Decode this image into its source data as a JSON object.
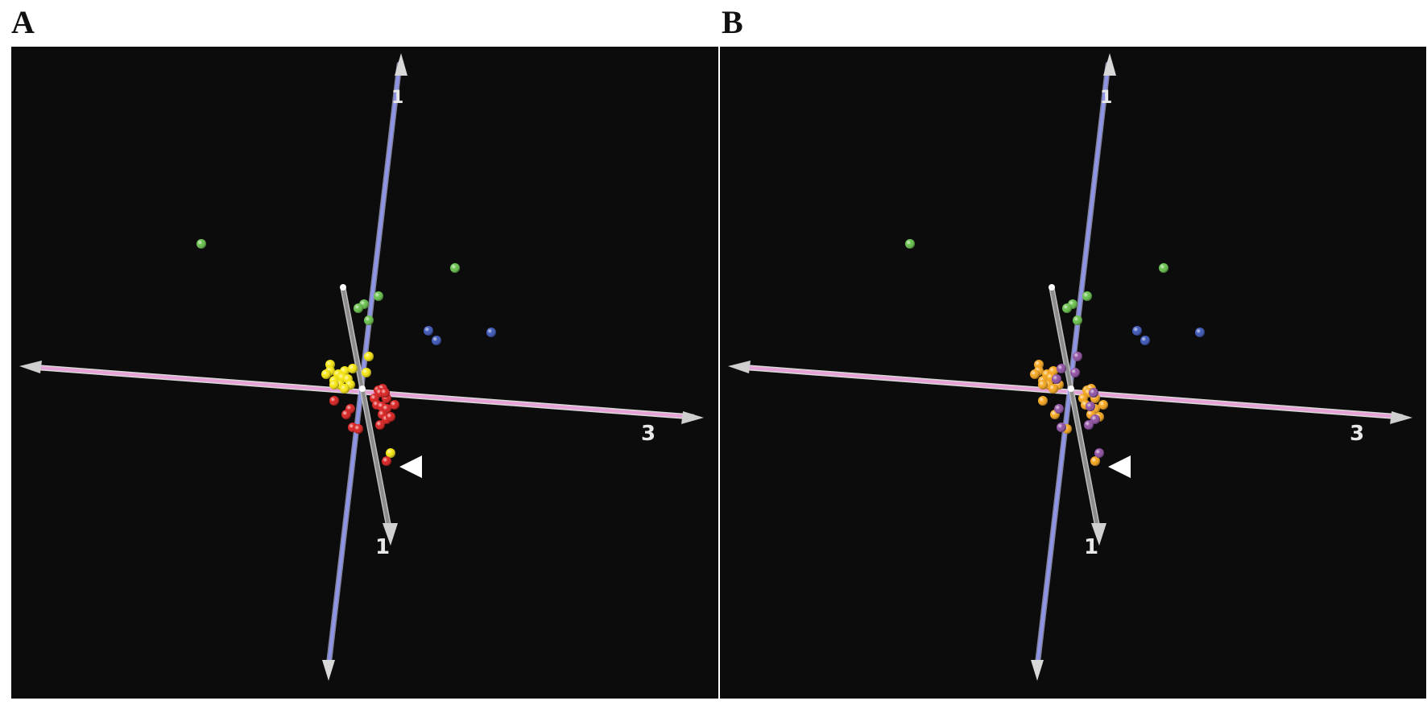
{
  "panels": [
    {
      "label": "A",
      "axes": [
        {
          "id": "pink",
          "label": "3",
          "color": "#e7a3d8"
        },
        {
          "id": "blue",
          "label": "1",
          "color": "#8f95e6"
        },
        {
          "id": "gray",
          "label": "1",
          "color": "#9a9a9a"
        }
      ]
    },
    {
      "label": "B",
      "axes": [
        {
          "id": "pink",
          "label": "3",
          "color": "#e7a3d8"
        },
        {
          "id": "blue",
          "label": "1",
          "color": "#8f95e6"
        },
        {
          "id": "gray",
          "label": "1",
          "color": "#9a9a9a"
        }
      ]
    }
  ],
  "chart_data": [
    {
      "type": "scatter",
      "projection": "3d",
      "title": "",
      "marker_icon": "white-triangle-pointer-icon",
      "series": [
        {
          "color": "#66c04a",
          "points": [
            [
              -2.0,
              1.8
            ],
            [
              1.15,
              1.5
            ],
            [
              0.2,
              1.15
            ],
            [
              0.02,
              1.05
            ],
            [
              -0.05,
              1.0
            ],
            [
              0.08,
              0.85
            ]
          ]
        },
        {
          "color": "#3a55b8",
          "points": [
            [
              0.82,
              0.72
            ],
            [
              0.92,
              0.6
            ],
            [
              1.6,
              0.7
            ]
          ]
        },
        {
          "color": "#f5e50d",
          "points": [
            [
              -0.4,
              0.3
            ],
            [
              -0.4,
              0.22
            ],
            [
              -0.3,
              0.18
            ],
            [
              -0.22,
              0.22
            ],
            [
              -0.45,
              0.18
            ],
            [
              -0.35,
              0.1
            ],
            [
              -0.25,
              0.14
            ],
            [
              -0.18,
              0.12
            ],
            [
              -0.28,
              0.05
            ],
            [
              -0.35,
              0.05
            ],
            [
              -0.15,
              0.05
            ],
            [
              -0.22,
              0.0
            ],
            [
              -0.12,
              0.25
            ],
            [
              0.05,
              0.2
            ],
            [
              0.08,
              0.4
            ],
            [
              0.35,
              -0.8
            ]
          ]
        },
        {
          "color": "#d81e1e",
          "points": [
            [
              0.2,
              -0.02
            ],
            [
              0.25,
              0.0
            ],
            [
              0.22,
              -0.05
            ],
            [
              0.15,
              -0.12
            ],
            [
              0.18,
              -0.2
            ],
            [
              0.24,
              -0.22
            ],
            [
              0.3,
              -0.25
            ],
            [
              0.25,
              -0.32
            ],
            [
              0.3,
              -0.38
            ],
            [
              0.22,
              -0.45
            ],
            [
              0.35,
              -0.35
            ],
            [
              0.4,
              -0.2
            ],
            [
              0.3,
              -0.12
            ],
            [
              0.28,
              -0.05
            ],
            [
              -0.35,
              -0.15
            ],
            [
              -0.15,
              -0.25
            ],
            [
              -0.2,
              -0.32
            ],
            [
              -0.12,
              -0.48
            ],
            [
              -0.05,
              -0.5
            ],
            [
              0.3,
              -0.9
            ]
          ]
        }
      ]
    },
    {
      "type": "scatter",
      "projection": "3d",
      "title": "",
      "marker_icon": "white-triangle-pointer-icon",
      "series": [
        {
          "color": "#66c04a",
          "points": [
            [
              -2.0,
              1.8
            ],
            [
              1.15,
              1.5
            ],
            [
              0.2,
              1.15
            ],
            [
              0.02,
              1.05
            ],
            [
              -0.05,
              1.0
            ],
            [
              0.08,
              0.85
            ]
          ]
        },
        {
          "color": "#3a55b8",
          "points": [
            [
              0.82,
              0.72
            ],
            [
              0.92,
              0.6
            ],
            [
              1.6,
              0.7
            ]
          ]
        },
        {
          "color": "#f5a51c",
          "points": [
            [
              -0.4,
              0.3
            ],
            [
              -0.4,
              0.22
            ],
            [
              -0.3,
              0.18
            ],
            [
              -0.22,
              0.22
            ],
            [
              -0.45,
              0.18
            ],
            [
              -0.35,
              0.1
            ],
            [
              -0.25,
              0.14
            ],
            [
              -0.28,
              0.05
            ],
            [
              -0.35,
              0.05
            ],
            [
              -0.15,
              0.05
            ],
            [
              -0.22,
              0.0
            ],
            [
              0.2,
              -0.02
            ],
            [
              0.25,
              0.0
            ],
            [
              0.22,
              -0.05
            ],
            [
              0.15,
              -0.12
            ],
            [
              0.18,
              -0.2
            ],
            [
              0.3,
              -0.25
            ],
            [
              0.25,
              -0.32
            ],
            [
              0.35,
              -0.35
            ],
            [
              0.4,
              -0.2
            ],
            [
              0.3,
              -0.12
            ],
            [
              -0.35,
              -0.15
            ],
            [
              -0.2,
              -0.32
            ],
            [
              -0.05,
              -0.5
            ],
            [
              0.3,
              -0.9
            ]
          ]
        },
        {
          "color": "#8e4fa2",
          "points": [
            [
              -0.12,
              0.25
            ],
            [
              0.05,
              0.2
            ],
            [
              0.08,
              0.4
            ],
            [
              -0.18,
              0.12
            ],
            [
              0.24,
              -0.22
            ],
            [
              0.3,
              -0.38
            ],
            [
              0.22,
              -0.45
            ],
            [
              0.28,
              -0.05
            ],
            [
              -0.15,
              -0.25
            ],
            [
              -0.12,
              -0.48
            ],
            [
              0.35,
              -0.8
            ]
          ]
        }
      ]
    }
  ]
}
